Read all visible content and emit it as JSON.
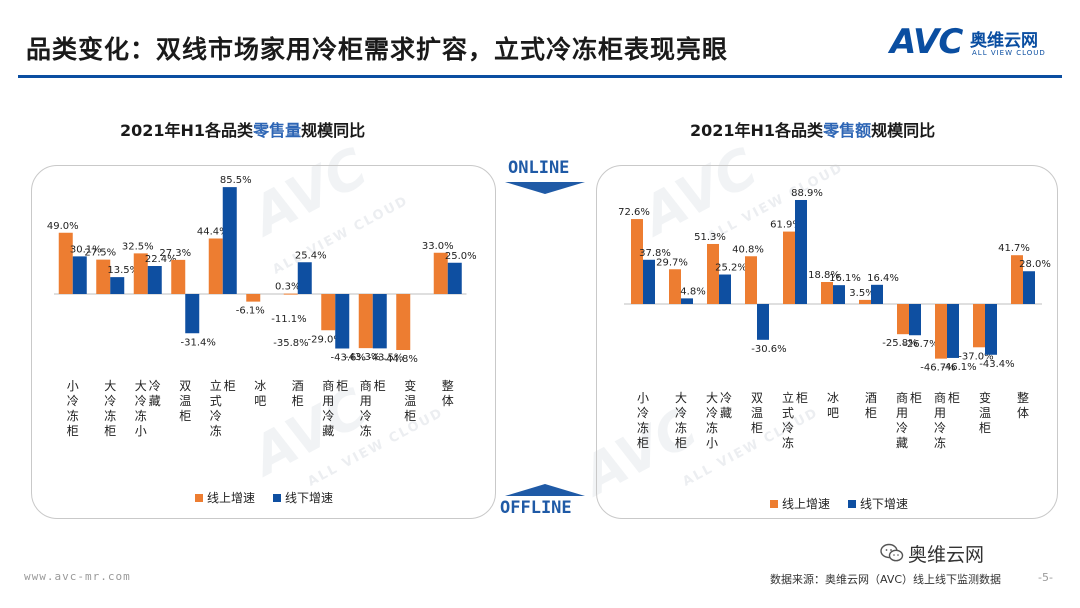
{
  "header": {
    "title": "品类变化：双线市场家用冷柜需求扩容，立式冷冻柜表现亮眼",
    "logo_mark": "AVC",
    "logo_cn": "奥维云网",
    "logo_en": "ALL VIEW CLOUD"
  },
  "colors": {
    "online": "#ED7D31",
    "offline": "#0E4FA1",
    "accent": "#0a4ea1"
  },
  "channel": {
    "online": "ONLINE",
    "offline": "OFFLINE"
  },
  "watermark": {
    "mark": "AVC",
    "cn": "奥维云网",
    "en": "ALL VIEW CLOUD"
  },
  "chart_data": [
    {
      "type": "bar",
      "title_prefix": "2021年H1各品类",
      "title_highlight": "零售量",
      "title_suffix": "规模同比",
      "categories": [
        "小冷冻柜",
        "大冷冻柜",
        "大冷冻小冷藏",
        "双温柜",
        "立式冷冻柜",
        "冰吧",
        "酒柜",
        "商用冷藏柜",
        "商用冷冻柜",
        "变温柜",
        "整体"
      ],
      "series": [
        {
          "name": "线上增速",
          "values": [
            49.0,
            27.5,
            32.5,
            27.3,
            44.4,
            -6.1,
            0.3,
            -29.0,
            -43.3,
            -44.8,
            33.0
          ]
        },
        {
          "name": "线下增速",
          "values": [
            30.1,
            13.5,
            22.4,
            -31.4,
            85.5,
            null,
            25.4,
            -43.6,
            -43.5,
            null,
            25.0
          ]
        }
      ],
      "data_labels": {
        "online": [
          "49.0%",
          "27.5%",
          "32.5%",
          "27.3%",
          "44.4%",
          "-6.1%",
          "0.3%",
          "-29.0%",
          "-43.3%",
          "-44.8%",
          "33.0%"
        ],
        "offline": [
          "30.1%",
          "13.5%",
          "22.4%",
          "-31.4%",
          "85.5%",
          null,
          "25.4%",
          "-43.6%",
          "-43.5%",
          null,
          "25.0%"
        ]
      },
      "extra_labels": [
        "-11.1%",
        "-35.8%"
      ],
      "ylim": [
        -50,
        90
      ]
    },
    {
      "type": "bar",
      "title_prefix": "2021年H1各品类",
      "title_highlight": "零售额",
      "title_suffix": "规模同比",
      "categories": [
        "小冷冻柜",
        "大冷冻柜",
        "大冷冻小冷藏",
        "双温柜",
        "立式冷冻柜",
        "冰吧",
        "酒柜",
        "商用冷藏柜",
        "商用冷冻柜",
        "变温柜",
        "整体"
      ],
      "series": [
        {
          "name": "线上增速",
          "values": [
            72.6,
            29.7,
            51.3,
            40.8,
            61.9,
            18.8,
            3.5,
            -25.8,
            -46.7,
            -37.0,
            41.7
          ]
        },
        {
          "name": "线下增速",
          "values": [
            37.8,
            4.8,
            25.2,
            -30.6,
            88.9,
            16.1,
            16.4,
            -26.7,
            -46.1,
            -43.4,
            28.0
          ]
        }
      ],
      "data_labels": {
        "online": [
          "72.6%",
          "29.7%",
          "51.3%",
          "40.8%",
          "61.9%",
          "18.8%",
          "3.5%",
          "-25.8%",
          "-46.7%",
          "-37.0%",
          "41.7%"
        ],
        "offline": [
          "37.8%",
          "4.8%",
          "25.2%",
          "-30.6%",
          "88.9%",
          "16.1%",
          "16.4%",
          "-26.7%",
          "-46.1%",
          "-43.4%",
          "28.0%"
        ]
      },
      "ylim": [
        -50,
        95
      ]
    }
  ],
  "footer": {
    "url": "www.avc-mr.com",
    "source": "数据来源：奥维云网（AVC）线上线下监测数据",
    "page": "-5-",
    "wechat": "奥维云网"
  }
}
